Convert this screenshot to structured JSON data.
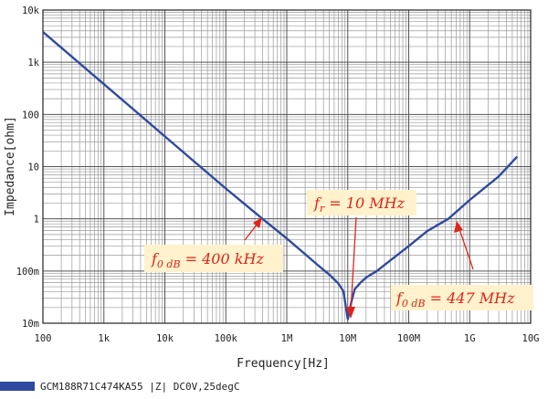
{
  "chart_data": {
    "type": "line",
    "title": "",
    "xlabel": "Frequency[Hz]",
    "ylabel": "Impedance[ohm]",
    "x_scale": "log",
    "y_scale": "log",
    "xlim": [
      100,
      10000000000
    ],
    "ylim": [
      0.01,
      10000
    ],
    "grid": true,
    "x_ticks": [
      {
        "value": 100,
        "label": "100"
      },
      {
        "value": 1000,
        "label": "1k"
      },
      {
        "value": 10000,
        "label": "10k"
      },
      {
        "value": 100000,
        "label": "100k"
      },
      {
        "value": 1000000,
        "label": "1M"
      },
      {
        "value": 10000000,
        "label": "10M"
      },
      {
        "value": 100000000,
        "label": "100M"
      },
      {
        "value": 1000000000,
        "label": "1G"
      },
      {
        "value": 10000000000,
        "label": "10G"
      }
    ],
    "y_ticks": [
      {
        "value": 0.01,
        "label": "10m"
      },
      {
        "value": 0.1,
        "label": "100m"
      },
      {
        "value": 1,
        "label": "1"
      },
      {
        "value": 10,
        "label": "10"
      },
      {
        "value": 100,
        "label": "100"
      },
      {
        "value": 1000,
        "label": "1k"
      },
      {
        "value": 10000,
        "label": "10k"
      }
    ],
    "series": [
      {
        "name": "GCM188R71C474KA55 |Z| DC0V,25degC",
        "color": "#2e4a9e",
        "x": [
          100,
          200,
          500,
          1000,
          3000,
          10000,
          30000,
          100000,
          400000,
          1000000,
          2000000,
          3000000,
          5000000,
          7000000,
          8500000,
          10000000,
          11500000,
          13000000,
          16000000,
          20000000,
          30000000,
          50000000,
          100000000,
          200000000,
          447000000,
          1000000000,
          3000000000,
          6000000000
        ],
        "y": [
          3800,
          1900,
          760,
          380,
          127,
          38,
          12.7,
          3.8,
          1.0,
          0.42,
          0.21,
          0.14,
          0.085,
          0.058,
          0.041,
          0.012,
          0.026,
          0.045,
          0.059,
          0.075,
          0.1,
          0.16,
          0.3,
          0.58,
          1.0,
          2.3,
          6.5,
          15.5
        ]
      }
    ],
    "annotations": [
      {
        "text": "f₀ dB = 400 kHz",
        "x": 400000,
        "y": 1.0
      },
      {
        "text": "fr = 10 MHz",
        "x": 10000000,
        "y": 0.012
      },
      {
        "text": "f₀ dB = 447 MHz",
        "x": 447000000,
        "y": 1.0
      }
    ],
    "legend": {
      "position": "bottom-left",
      "label": "GCM188R71C474KA55 |Z| DC0V,25degC"
    }
  }
}
